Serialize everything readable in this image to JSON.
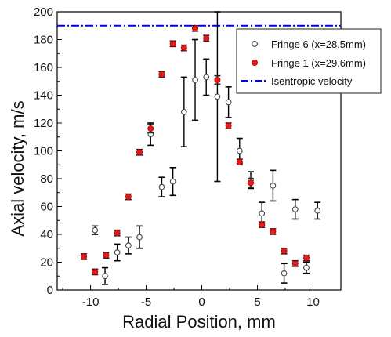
{
  "chart_data": {
    "type": "scatter",
    "title": "",
    "xlabel": "Radial Position, mm",
    "ylabel": "Axial velocity, m/s",
    "xlim": [
      -13,
      12.5
    ],
    "ylim": [
      0,
      200
    ],
    "xticks": [
      -10,
      -5,
      0,
      5,
      10
    ],
    "yticks": [
      0,
      20,
      40,
      60,
      80,
      100,
      120,
      140,
      160,
      180,
      200
    ],
    "grid": false,
    "legend_position": "top-right",
    "series": [
      {
        "name": "Fringe 6 (x=28.5mm)",
        "marker": "open-circle",
        "color": "#000000",
        "points": [
          {
            "x": -9.6,
            "y": 43,
            "err": 3
          },
          {
            "x": -8.7,
            "y": 10,
            "err": 6
          },
          {
            "x": -7.6,
            "y": 27,
            "err": 6
          },
          {
            "x": -6.6,
            "y": 32,
            "err": 6
          },
          {
            "x": -5.6,
            "y": 38,
            "err": 8
          },
          {
            "x": -4.6,
            "y": 112,
            "err": 8
          },
          {
            "x": -3.6,
            "y": 74,
            "err": 7
          },
          {
            "x": -2.6,
            "y": 78,
            "err": 10
          },
          {
            "x": -1.6,
            "y": 128,
            "err": 25
          },
          {
            "x": -0.6,
            "y": 151,
            "err": 29
          },
          {
            "x": 0.4,
            "y": 153,
            "err": 13
          },
          {
            "x": 1.4,
            "y": 139,
            "err": 61
          },
          {
            "x": 2.4,
            "y": 135,
            "err": 11
          },
          {
            "x": 3.4,
            "y": 100,
            "err": 9
          },
          {
            "x": 4.4,
            "y": 79,
            "err": 6
          },
          {
            "x": 5.4,
            "y": 55,
            "err": 8
          },
          {
            "x": 6.4,
            "y": 75,
            "err": 11
          },
          {
            "x": 7.4,
            "y": 12,
            "err": 7
          },
          {
            "x": 8.4,
            "y": 58,
            "err": 7
          },
          {
            "x": 9.4,
            "y": 16,
            "err": 4
          },
          {
            "x": 10.4,
            "y": 57,
            "err": 6
          }
        ]
      },
      {
        "name": "Fringe 1 (x=29.6mm)",
        "marker": "filled-circle",
        "color": "#e41a1c",
        "points": [
          {
            "x": -10.6,
            "y": 24,
            "err": 2
          },
          {
            "x": -9.6,
            "y": 13,
            "err": 2
          },
          {
            "x": -8.6,
            "y": 25,
            "err": 2
          },
          {
            "x": -7.6,
            "y": 41,
            "err": 2
          },
          {
            "x": -6.6,
            "y": 67,
            "err": 2
          },
          {
            "x": -5.6,
            "y": 99,
            "err": 2
          },
          {
            "x": -4.6,
            "y": 116,
            "err": 3
          },
          {
            "x": -3.6,
            "y": 155,
            "err": 2
          },
          {
            "x": -2.6,
            "y": 177,
            "err": 2
          },
          {
            "x": -1.6,
            "y": 174,
            "err": 2
          },
          {
            "x": -0.6,
            "y": 188,
            "err": 2
          },
          {
            "x": 0.4,
            "y": 181,
            "err": 2
          },
          {
            "x": 1.4,
            "y": 151,
            "err": 3
          },
          {
            "x": 2.4,
            "y": 118,
            "err": 2
          },
          {
            "x": 3.4,
            "y": 92,
            "err": 2
          },
          {
            "x": 4.4,
            "y": 77,
            "err": 3
          },
          {
            "x": 5.4,
            "y": 47,
            "err": 2
          },
          {
            "x": 6.4,
            "y": 42,
            "err": 2
          },
          {
            "x": 7.4,
            "y": 28,
            "err": 2
          },
          {
            "x": 8.4,
            "y": 19,
            "err": 2
          },
          {
            "x": 9.4,
            "y": 23,
            "err": 2
          }
        ]
      },
      {
        "name": "Isentropic velocity",
        "type": "hline",
        "style": "dash-dot",
        "color": "#0000ee",
        "y": 190
      }
    ]
  }
}
